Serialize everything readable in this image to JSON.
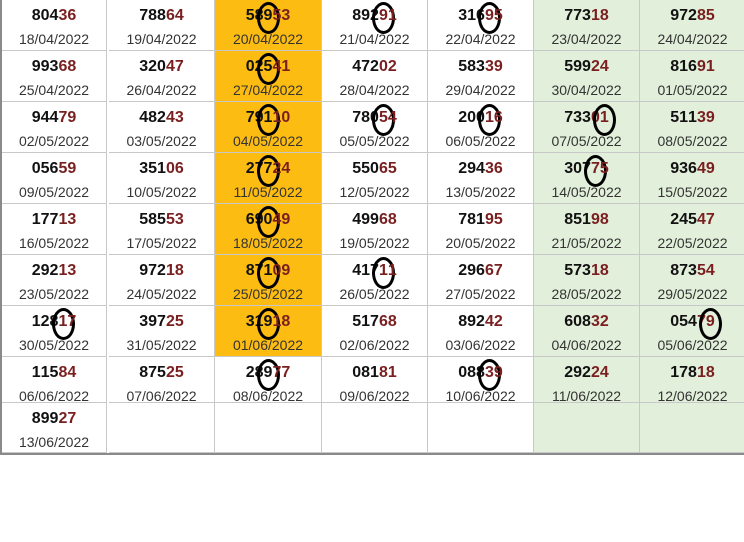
{
  "colors": {
    "highlight_column": "#fcbc12",
    "weekend_columns": "#e2efda",
    "last_two_digits": "#7a1f1f",
    "border": "#c8c8c8"
  },
  "rows": [
    [
      {
        "n": "80436",
        "d": "18/04/2022"
      },
      {
        "n": "78864",
        "d": "19/04/2022"
      },
      {
        "n": "58953",
        "d": "20/04/2022",
        "m": 2
      },
      {
        "n": "89291",
        "d": "21/04/2022",
        "m": 3
      },
      {
        "n": "31695",
        "d": "22/04/2022",
        "m": 3
      },
      {
        "n": "77318",
        "d": "23/04/2022"
      },
      {
        "n": "97285",
        "d": "24/04/2022"
      }
    ],
    [
      {
        "n": "99368",
        "d": "25/04/2022"
      },
      {
        "n": "32047",
        "d": "26/04/2022"
      },
      {
        "n": "02541",
        "d": "27/04/2022",
        "m": 2
      },
      {
        "n": "47202",
        "d": "28/04/2022"
      },
      {
        "n": "58339",
        "d": "29/04/2022"
      },
      {
        "n": "59924",
        "d": "30/04/2022"
      },
      {
        "n": "81691",
        "d": "01/05/2022"
      }
    ],
    [
      {
        "n": "94479",
        "d": "02/05/2022"
      },
      {
        "n": "48243",
        "d": "03/05/2022"
      },
      {
        "n": "79110",
        "d": "04/05/2022",
        "m": 2
      },
      {
        "n": "78054",
        "d": "05/05/2022",
        "m": 3
      },
      {
        "n": "20016",
        "d": "06/05/2022",
        "m": 3
      },
      {
        "n": "73301",
        "d": "07/05/2022",
        "m": 4
      },
      {
        "n": "51139",
        "d": "08/05/2022"
      }
    ],
    [
      {
        "n": "05659",
        "d": "09/05/2022"
      },
      {
        "n": "35106",
        "d": "10/05/2022"
      },
      {
        "n": "27724",
        "d": "11/05/2022",
        "m": 2
      },
      {
        "n": "55065",
        "d": "12/05/2022"
      },
      {
        "n": "29436",
        "d": "13/05/2022"
      },
      {
        "n": "30775",
        "d": "14/05/2022",
        "m": 3
      },
      {
        "n": "93649",
        "d": "15/05/2022"
      }
    ],
    [
      {
        "n": "17713",
        "d": "16/05/2022"
      },
      {
        "n": "58553",
        "d": "17/05/2022"
      },
      {
        "n": "69049",
        "d": "18/05/2022",
        "m": 2
      },
      {
        "n": "49968",
        "d": "19/05/2022"
      },
      {
        "n": "78195",
        "d": "20/05/2022"
      },
      {
        "n": "85198",
        "d": "21/05/2022"
      },
      {
        "n": "24547",
        "d": "22/05/2022"
      }
    ],
    [
      {
        "n": "29213",
        "d": "23/05/2022"
      },
      {
        "n": "97218",
        "d": "24/05/2022"
      },
      {
        "n": "87109",
        "d": "25/05/2022",
        "m": 2
      },
      {
        "n": "41711",
        "d": "26/05/2022",
        "m": 3
      },
      {
        "n": "29667",
        "d": "27/05/2022"
      },
      {
        "n": "57318",
        "d": "28/05/2022"
      },
      {
        "n": "87354",
        "d": "29/05/2022"
      }
    ],
    [
      {
        "n": "12817",
        "d": "30/05/2022",
        "m": 3
      },
      {
        "n": "39725",
        "d": "31/05/2022"
      },
      {
        "n": "31918",
        "d": "01/06/2022",
        "m": 2
      },
      {
        "n": "51768",
        "d": "02/06/2022"
      },
      {
        "n": "89242",
        "d": "03/06/2022"
      },
      {
        "n": "60832",
        "d": "04/06/2022"
      },
      {
        "n": "05479",
        "d": "05/06/2022",
        "m": 4
      }
    ],
    [
      {
        "n": "11584",
        "d": "06/06/2022"
      },
      {
        "n": "87525",
        "d": "07/06/2022"
      },
      {
        "n": "28977",
        "d": "08/06/2022",
        "m": 2
      },
      {
        "n": "08181",
        "d": "09/06/2022"
      },
      {
        "n": "08839",
        "d": "10/06/2022",
        "m": 3
      },
      {
        "n": "29224",
        "d": "11/06/2022"
      },
      {
        "n": "17818",
        "d": "12/06/2022"
      }
    ],
    [
      {
        "n": "89927",
        "d": "13/06/2022"
      },
      null,
      null,
      null,
      null,
      null,
      null
    ]
  ]
}
